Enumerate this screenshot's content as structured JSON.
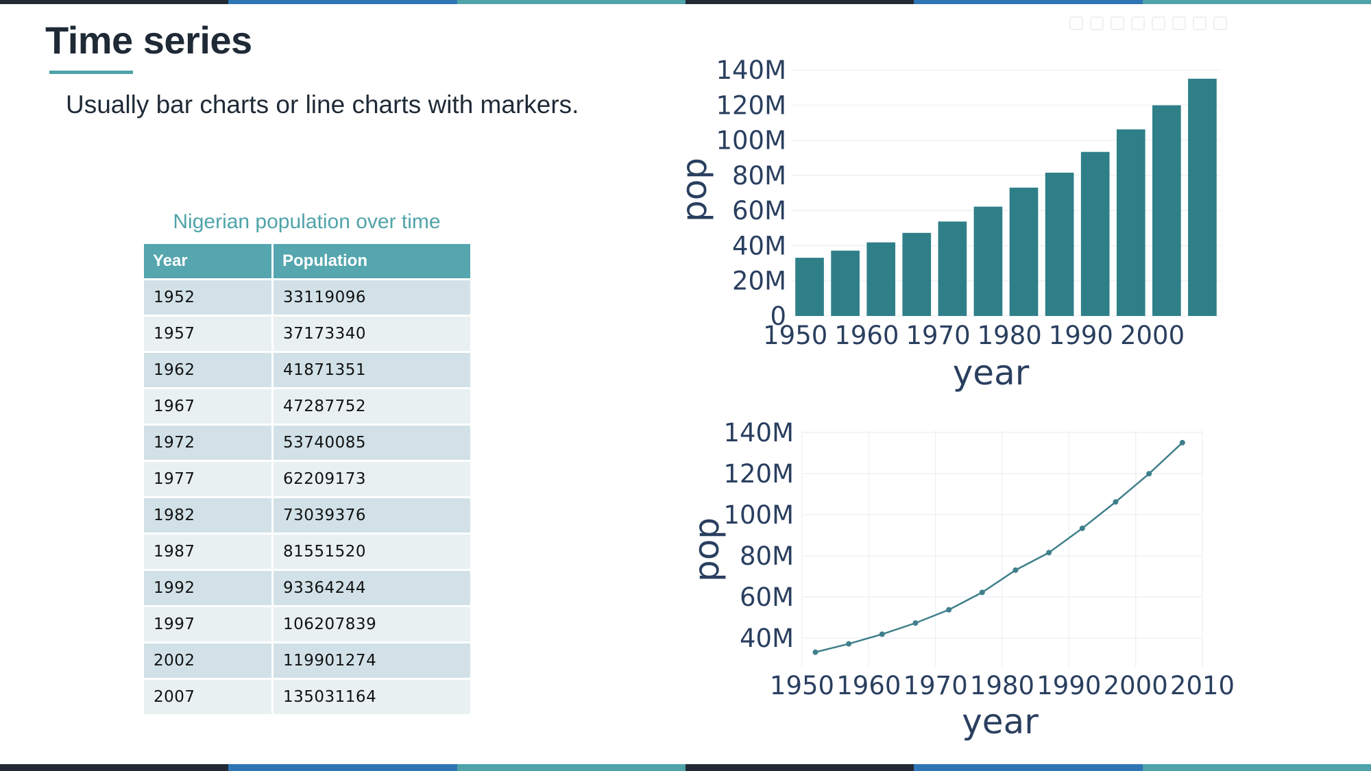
{
  "slide": {
    "title": "Time series",
    "subtitle": "Usually bar charts or line charts with markers.",
    "accent_color": "#4fa3a9",
    "stripe_colors": [
      "#222a35",
      "#2e75b6",
      "#4fa3a9"
    ]
  },
  "table": {
    "caption": "Nigerian population over time",
    "headers": [
      "Year",
      "Population"
    ],
    "rows": [
      [
        "1952",
        "33119096"
      ],
      [
        "1957",
        "37173340"
      ],
      [
        "1962",
        "41871351"
      ],
      [
        "1967",
        "47287752"
      ],
      [
        "1972",
        "53740085"
      ],
      [
        "1977",
        "62209173"
      ],
      [
        "1982",
        "73039376"
      ],
      [
        "1987",
        "81551520"
      ],
      [
        "1992",
        "93364244"
      ],
      [
        "1997",
        "106207839"
      ],
      [
        "2002",
        "119901274"
      ],
      [
        "2007",
        "135031164"
      ]
    ]
  },
  "chart_data": [
    {
      "type": "bar",
      "x": [
        1952,
        1957,
        1962,
        1967,
        1972,
        1977,
        1982,
        1987,
        1992,
        1997,
        2002,
        2007
      ],
      "values": [
        33119096,
        37173340,
        41871351,
        47287752,
        53740085,
        62209173,
        73039376,
        81551520,
        93364244,
        106207839,
        119901274,
        135031164
      ],
      "xlabel": "year",
      "ylabel": "pop",
      "xticks": [
        1950,
        1960,
        1970,
        1980,
        1990,
        2000
      ],
      "yticks": [
        0,
        20000000,
        40000000,
        60000000,
        80000000,
        100000000,
        120000000,
        140000000
      ],
      "ytick_labels": [
        "0",
        "20M",
        "40M",
        "60M",
        "80M",
        "100M",
        "120M",
        "140M"
      ],
      "ylim": [
        0,
        142000000
      ],
      "color": "#2e7f88",
      "grid": true
    },
    {
      "type": "line",
      "markers": true,
      "x": [
        1952,
        1957,
        1962,
        1967,
        1972,
        1977,
        1982,
        1987,
        1992,
        1997,
        2002,
        2007
      ],
      "values": [
        33119096,
        37173340,
        41871351,
        47287752,
        53740085,
        62209173,
        73039376,
        81551520,
        93364244,
        106207839,
        119901274,
        135031164
      ],
      "xlabel": "year",
      "ylabel": "pop",
      "xticks": [
        1950,
        1960,
        1970,
        1980,
        1990,
        2000,
        2010
      ],
      "yticks": [
        40000000,
        60000000,
        80000000,
        100000000,
        120000000,
        140000000
      ],
      "ytick_labels": [
        "40M",
        "60M",
        "80M",
        "100M",
        "120M",
        "140M"
      ],
      "xlim": [
        1950,
        2010
      ],
      "ylim": [
        26000000,
        141000000
      ],
      "color": "#3e7f8a",
      "grid": true
    }
  ]
}
